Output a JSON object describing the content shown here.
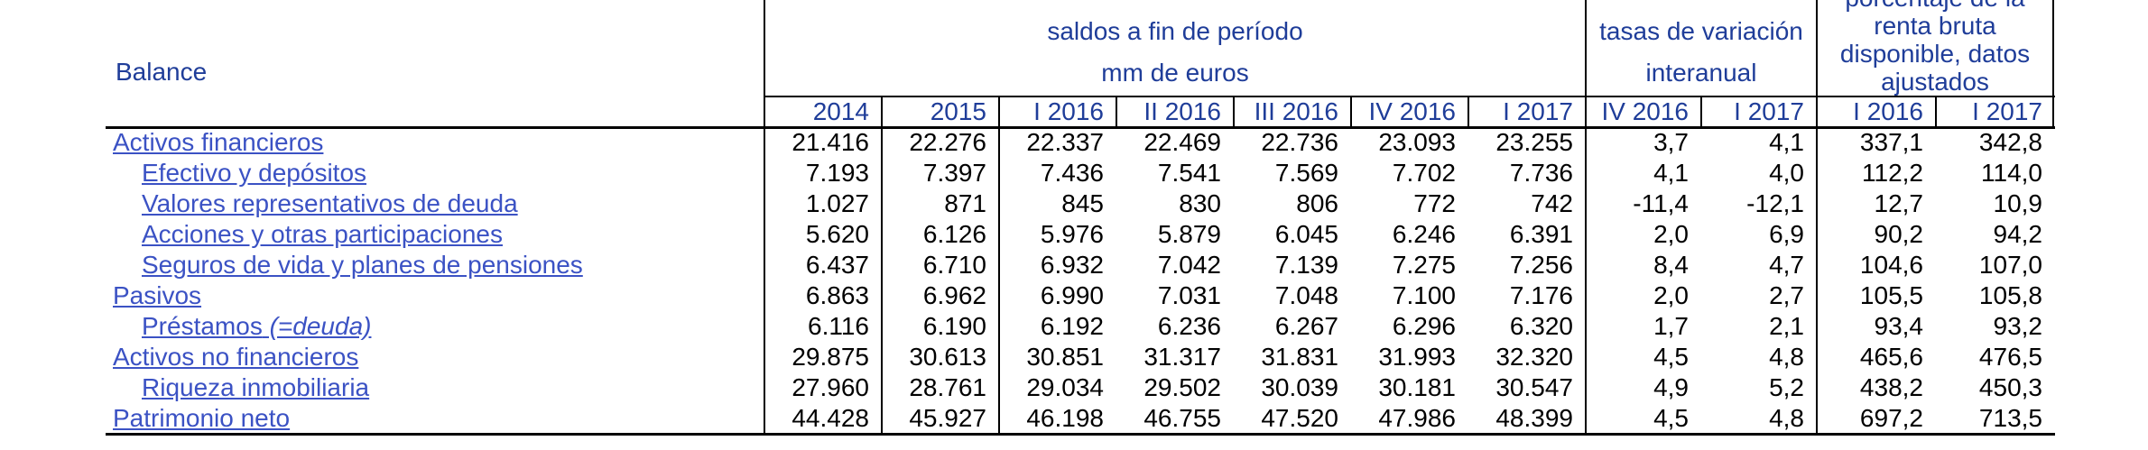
{
  "table": {
    "corner_label": "Balance",
    "column_groups": [
      {
        "title_lines": [
          "saldos a fin de período",
          "mm de euros"
        ],
        "columns": [
          "2014",
          "2015",
          "I 2016",
          "II 2016",
          "III 2016",
          "IV 2016",
          "I 2017"
        ]
      },
      {
        "title_lines": [
          "tasas de variación",
          "interanual"
        ],
        "columns": [
          "IV 2016",
          "I 2017"
        ]
      },
      {
        "title_lines": [
          "porcentaje de la",
          "renta bruta",
          "disponible, datos",
          "ajustados"
        ],
        "first_line_clipped_by_screenshot_top": true,
        "columns": [
          "I 2016",
          "I 2017"
        ]
      }
    ],
    "rows": [
      {
        "label": "Activos financieros",
        "indent": 0,
        "values": [
          "21.416",
          "22.276",
          "22.337",
          "22.469",
          "22.736",
          "23.093",
          "23.255",
          "3,7",
          "4,1",
          "337,1",
          "342,8"
        ]
      },
      {
        "label": "Efectivo y depósitos",
        "indent": 1,
        "values": [
          "7.193",
          "7.397",
          "7.436",
          "7.541",
          "7.569",
          "7.702",
          "7.736",
          "4,1",
          "4,0",
          "112,2",
          "114,0"
        ]
      },
      {
        "label": "Valores representativos de deuda",
        "indent": 1,
        "values": [
          "1.027",
          "871",
          "845",
          "830",
          "806",
          "772",
          "742",
          "-11,4",
          "-12,1",
          "12,7",
          "10,9"
        ]
      },
      {
        "label": "Acciones y otras participaciones",
        "indent": 1,
        "values": [
          "5.620",
          "6.126",
          "5.976",
          "5.879",
          "6.045",
          "6.246",
          "6.391",
          "2,0",
          "6,9",
          "90,2",
          "94,2"
        ]
      },
      {
        "label": "Seguros de vida y planes de pensiones",
        "indent": 1,
        "values": [
          "6.437",
          "6.710",
          "6.932",
          "7.042",
          "7.139",
          "7.275",
          "7.256",
          "8,4",
          "4,7",
          "104,6",
          "107,0"
        ]
      },
      {
        "label": "Pasivos",
        "indent": 0,
        "values": [
          "6.863",
          "6.962",
          "6.990",
          "7.031",
          "7.048",
          "7.100",
          "7.176",
          "2,0",
          "2,7",
          "105,5",
          "105,8"
        ]
      },
      {
        "label": "Préstamos",
        "label_italic": " (=deuda)",
        "indent": 1,
        "values": [
          "6.116",
          "6.190",
          "6.192",
          "6.236",
          "6.267",
          "6.296",
          "6.320",
          "1,7",
          "2,1",
          "93,4",
          "93,2"
        ]
      },
      {
        "label": "Activos no financieros",
        "indent": 0,
        "values": [
          "29.875",
          "30.613",
          "30.851",
          "31.317",
          "31.831",
          "31.993",
          "32.320",
          "4,5",
          "4,8",
          "465,6",
          "476,5"
        ]
      },
      {
        "label": "Riqueza inmobiliaria",
        "indent": 1,
        "values": [
          "27.960",
          "28.761",
          "29.034",
          "29.502",
          "30.039",
          "30.181",
          "30.547",
          "4,9",
          "5,2",
          "438,2",
          "450,3"
        ]
      },
      {
        "label": "Patrimonio neto",
        "indent": 0,
        "values": [
          "44.428",
          "45.927",
          "46.198",
          "46.755",
          "47.520",
          "47.986",
          "48.399",
          "4,5",
          "4,8",
          "697,2",
          "713,5"
        ]
      }
    ],
    "colors": {
      "header_blue": "#1F3D99",
      "link_blue": "#3B52C4",
      "border": "#000000",
      "background": "#FFFFFF"
    }
  }
}
